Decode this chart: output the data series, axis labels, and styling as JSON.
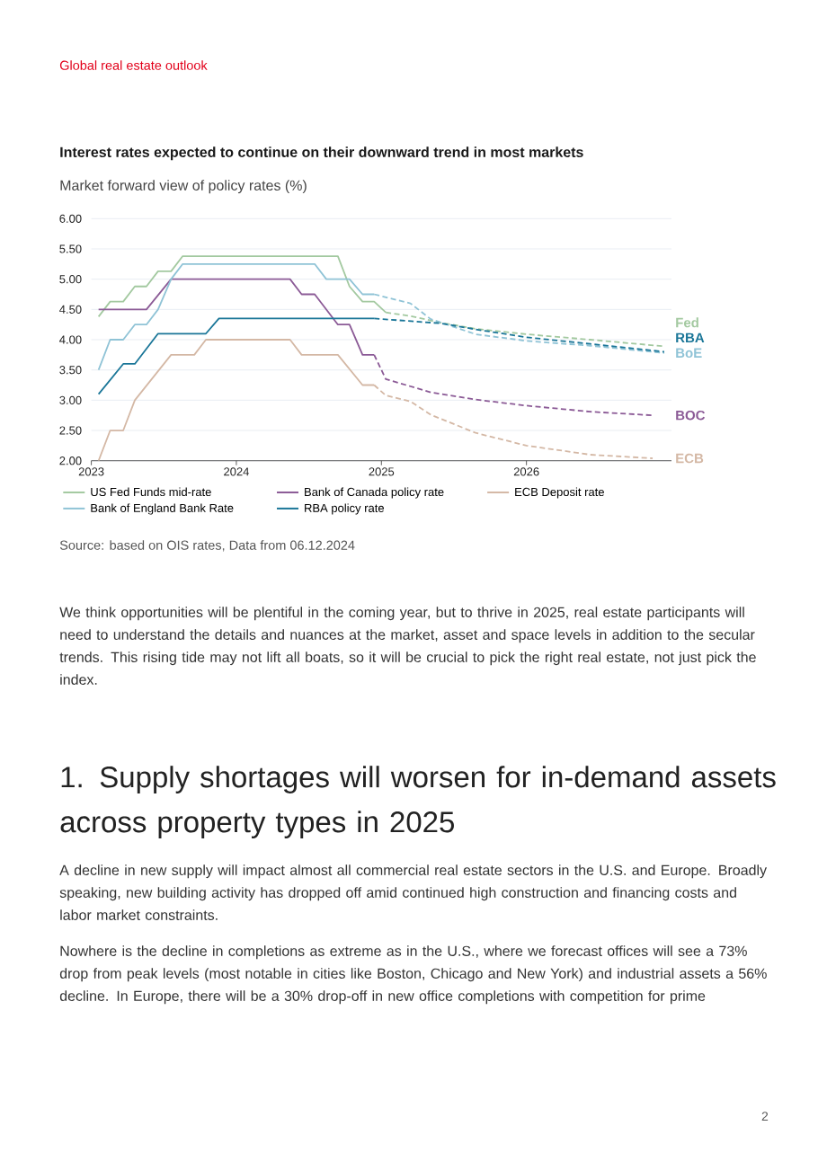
{
  "chart_data": {
    "type": "line",
    "title": "Interest rates expected to continue on their downward trend in most markets",
    "subtitle": "Market forward view of policy rates (%)",
    "xlim": [
      2023,
      2027
    ],
    "xticks": [
      2023,
      2024,
      2025,
      2026
    ],
    "ylim": [
      2,
      6
    ],
    "yticks": [
      {
        "value": 2,
        "label": "2.00"
      },
      {
        "value": 2.5,
        "label": "2.50"
      },
      {
        "value": 3,
        "label": "3.00"
      },
      {
        "value": 3.5,
        "label": "3.50"
      },
      {
        "value": 4,
        "label": "4.00"
      },
      {
        "value": 4.5,
        "label": "4.50"
      },
      {
        "value": 5,
        "label": "5.00"
      },
      {
        "value": 5.5,
        "label": "5.50"
      },
      {
        "value": 6,
        "label": "6.00"
      }
    ],
    "grid": "y",
    "legend": "bottom",
    "series": [
      {
        "name": "US Fed Funds mid-rate",
        "color": "#a3c9a0",
        "x": [
          2023.05,
          2023.13,
          2023.22,
          2023.3,
          2023.38,
          2023.46,
          2023.55,
          2023.63,
          2024.7,
          2024.78,
          2024.87,
          2024.95,
          2025.03
        ],
        "values": [
          4.38,
          4.63,
          4.63,
          4.88,
          4.88,
          5.13,
          5.13,
          5.38,
          5.38,
          4.88,
          4.63,
          4.63,
          4.45
        ]
      },
      {
        "name": "Bank of Canada policy rate",
        "color": "#8b5a96",
        "x": [
          2023.05,
          2023.38,
          2023.55,
          2024.37,
          2024.45,
          2024.54,
          2024.7,
          2024.78,
          2024.87,
          2024.95
        ],
        "values": [
          4.5,
          4.5,
          5.0,
          5.0,
          4.75,
          4.75,
          4.25,
          4.25,
          3.75,
          3.75
        ]
      },
      {
        "name": "ECB Deposit rate",
        "color": "#d4b8a5",
        "x": [
          2023.05,
          2023.13,
          2023.22,
          2023.3,
          2023.55,
          2023.71,
          2023.79,
          2024.37,
          2024.45,
          2024.7,
          2024.87,
          2024.95
        ],
        "values": [
          2.0,
          2.5,
          2.5,
          3.0,
          3.75,
          3.75,
          4.0,
          4.0,
          3.75,
          3.75,
          3.25,
          3.25
        ]
      },
      {
        "name": "Bank of England Bank Rate",
        "color": "#8fc3d6",
        "x": [
          2023.05,
          2023.13,
          2023.22,
          2023.3,
          2023.38,
          2023.46,
          2023.55,
          2023.63,
          2024.54,
          2024.62,
          2024.78,
          2024.87,
          2024.95
        ],
        "values": [
          3.5,
          4.0,
          4.0,
          4.25,
          4.25,
          4.5,
          5.0,
          5.25,
          5.25,
          5.0,
          5.0,
          4.75,
          4.75
        ]
      },
      {
        "name": "RBA policy rate",
        "color": "#1a7698",
        "x": [
          2023.05,
          2023.22,
          2023.3,
          2023.46,
          2023.79,
          2023.88,
          2024.95
        ],
        "values": [
          3.1,
          3.6,
          3.6,
          4.1,
          4.1,
          4.35,
          4.35
        ]
      },
      {
        "name": "Fed",
        "color": "#a3c9a0",
        "line_style": "dashed",
        "x": [
          2025.03,
          2025.2,
          2025.41,
          2025.65,
          2026.0,
          2026.44,
          2026.95
        ],
        "values": [
          4.45,
          4.39,
          4.28,
          4.18,
          4.09,
          4.0,
          3.89
        ]
      },
      {
        "name": "BOC",
        "color": "#8b5a96",
        "line_style": "dashed",
        "x": [
          2024.95,
          2025.03,
          2025.34,
          2025.65,
          2026.0,
          2026.44,
          2026.87
        ],
        "values": [
          3.75,
          3.35,
          3.13,
          3.01,
          2.91,
          2.81,
          2.75
        ]
      },
      {
        "name": "ECB",
        "color": "#d4b8a5",
        "line_style": "dashed",
        "x": [
          2024.95,
          2025.03,
          2025.2,
          2025.34,
          2025.65,
          2026.0,
          2026.44,
          2026.87
        ],
        "values": [
          3.25,
          3.08,
          2.98,
          2.76,
          2.46,
          2.25,
          2.1,
          2.04
        ]
      },
      {
        "name": "BoE",
        "color": "#8fc3d6",
        "line_style": "dashed",
        "x": [
          2024.95,
          2025.2,
          2025.34,
          2025.65,
          2026.0,
          2026.44,
          2026.95
        ],
        "values": [
          4.75,
          4.6,
          4.34,
          4.09,
          3.98,
          3.9,
          3.78
        ]
      },
      {
        "name": "RBA",
        "color": "#1a7698",
        "line_style": "dashed",
        "x": [
          2024.95,
          2025.41,
          2025.65,
          2026.0,
          2026.44,
          2026.95
        ],
        "values": [
          4.35,
          4.27,
          4.17,
          4.04,
          3.93,
          3.8
        ]
      }
    ],
    "annotations": [
      "Global real estate outlook",
      "Source: based on OIS rates, Data from 06.12.2024",
      "We think opportunities will be plentiful in the coming year, but to thrive in 2025, real estate participants will need to understand the details and nuances at the market, asset and space levels in addition to the secular trends. This rising tide may not lift all boats, so it will be crucial to pick the right real estate, not just pick the index.",
      "1. Supply shortages will worsen for in-demand assets across property types in 2025",
      "A decline in new supply will impact almost all commercial real estate sectors in the U.S. and Europe. Broadly speaking, new building activity has dropped off amid continued high construction and financing costs and labor market constraints.",
      "Nowhere is the decline in completions as extreme as in the U.S., where we forecast offices will see a 73% drop from peak levels (most notable in cities like Boston, Chicago and New York) and industrial assets a 56% decline. In Europe, there will be a 30% drop-off in new office completions with competition for prime",
      "2"
    ]
  }
}
